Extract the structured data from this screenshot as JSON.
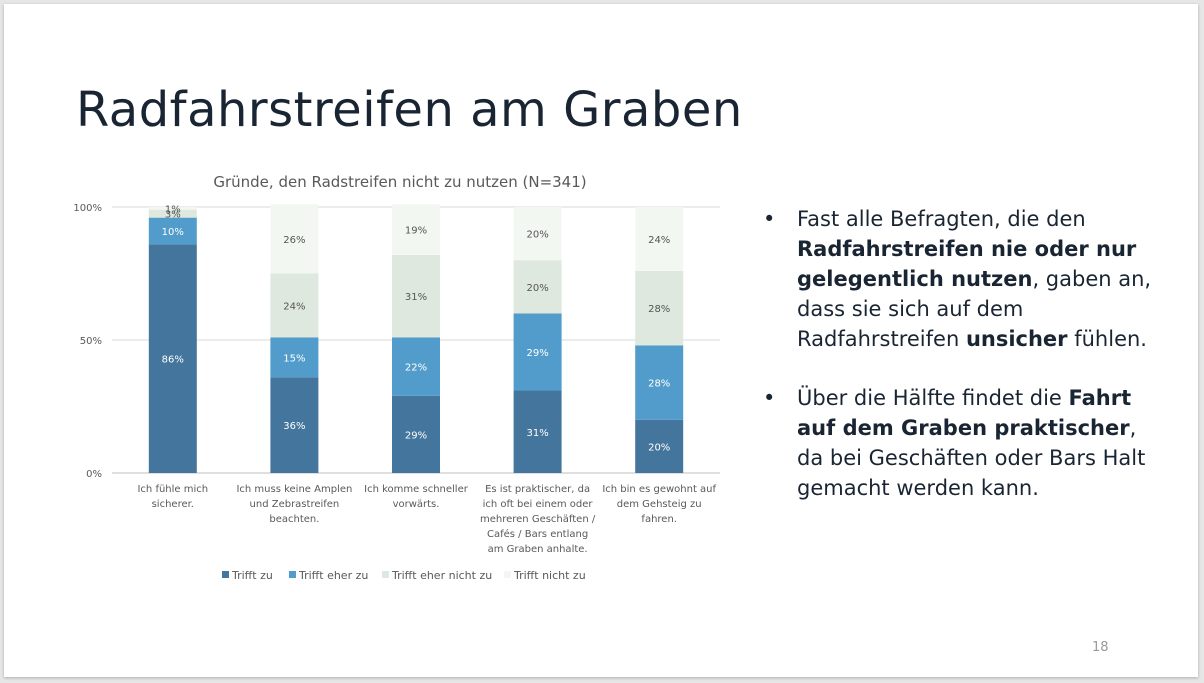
{
  "slide": {
    "title": "Radfahrstreifen am Graben",
    "page_number": "18"
  },
  "bullets": [
    {
      "parts": [
        {
          "text": "Fast alle Befragten, die den ",
          "bold": false
        },
        {
          "text": "Radfahrstreifen nie oder nur gelegentlich nutzen",
          "bold": true
        },
        {
          "text": ", gaben an, dass sie sich auf dem Radfahrstreifen ",
          "bold": false
        },
        {
          "text": "unsicher",
          "bold": true
        },
        {
          "text": " fühlen.",
          "bold": false
        }
      ]
    },
    {
      "parts": [
        {
          "text": "Über die Hälfte findet die ",
          "bold": false
        },
        {
          "text": "Fahrt auf dem Graben praktischer",
          "bold": true
        },
        {
          "text": ", da bei Geschäften oder Bars Halt gemacht werden kann.",
          "bold": false
        }
      ]
    }
  ],
  "chart_data": {
    "type": "bar",
    "stacked": true,
    "title": "Gründe, den Radstreifen nicht zu nutzen (N=341)",
    "ylim": [
      0,
      100
    ],
    "yticks": [
      {
        "value": 0,
        "label": "0%"
      },
      {
        "value": 50,
        "label": "50%"
      },
      {
        "value": 100,
        "label": "100%"
      }
    ],
    "categories": [
      [
        "Ich fühle mich",
        "sicherer."
      ],
      [
        "Ich muss keine Amplen",
        "und Zebrastreifen",
        "beachten."
      ],
      [
        "Ich komme schneller",
        "vorwärts."
      ],
      [
        "Es ist praktischer, da",
        "ich oft bei einem oder",
        "mehreren Geschäften /",
        "Cafés / Bars entlang",
        "am Graben anhalte."
      ],
      [
        "Ich bin es gewohnt auf",
        "dem Gehsteig zu",
        "fahren."
      ]
    ],
    "series": [
      {
        "name": "Trifft zu",
        "color": "#44759c",
        "label_color": "#ffffff",
        "values": [
          86,
          36,
          29,
          31,
          20
        ]
      },
      {
        "name": "Trifft eher zu",
        "color": "#519cca",
        "label_color": "#ffffff",
        "values": [
          10,
          15,
          22,
          29,
          28
        ]
      },
      {
        "name": "Trifft eher nicht zu",
        "color": "#dfe8df",
        "label_color": "#555555",
        "values": [
          3,
          24,
          31,
          20,
          28
        ]
      },
      {
        "name": "Trifft nicht zu",
        "color": "#f2f8f1",
        "label_color": "#555555",
        "values": [
          1,
          26,
          19,
          20,
          24
        ]
      }
    ],
    "legend_position": "bottom",
    "grid": true
  }
}
